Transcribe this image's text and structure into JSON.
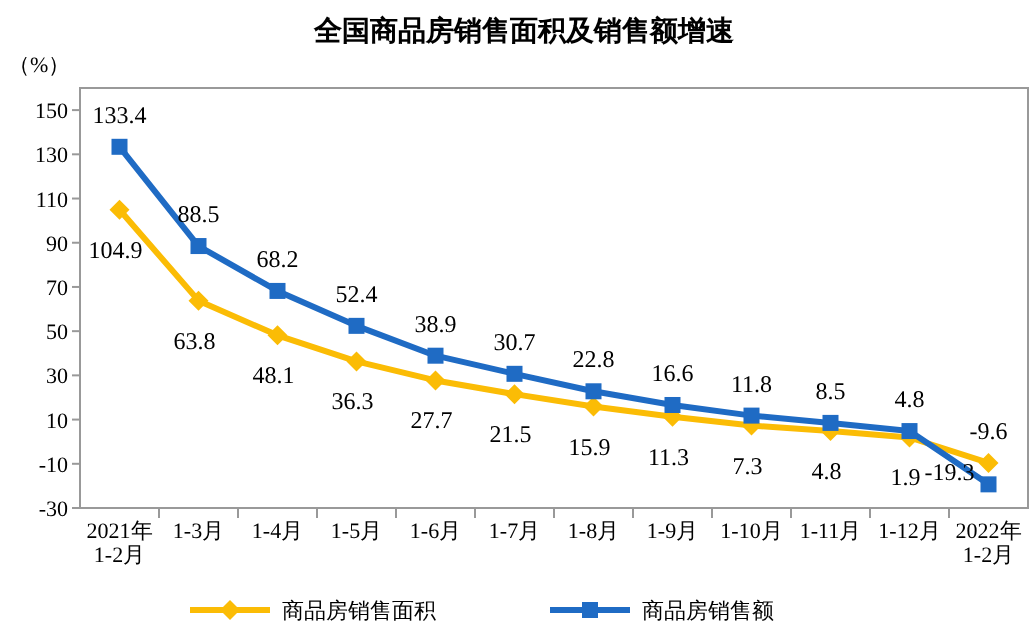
{
  "chart_data": {
    "type": "line",
    "title": "全国商品房销售面积及销售额增速",
    "ylabel": "（%）",
    "categories": [
      "2021年1-2月",
      "1-3月",
      "1-4月",
      "1-5月",
      "1-6月",
      "1-7月",
      "1-8月",
      "1-9月",
      "1-10月",
      "1-11月",
      "1-12月",
      "2022年1-2月"
    ],
    "series": [
      {
        "name": "商品房销售面积",
        "color": "#fbbc05",
        "marker": "diamond",
        "values": [
          104.9,
          63.8,
          48.1,
          36.3,
          27.7,
          21.5,
          15.9,
          11.3,
          7.3,
          4.8,
          1.9,
          -9.6
        ]
      },
      {
        "name": "商品房销售额",
        "color": "#1f6bc4",
        "marker": "square",
        "values": [
          133.4,
          88.5,
          68.2,
          52.4,
          38.9,
          30.7,
          22.8,
          16.6,
          11.8,
          8.5,
          4.8,
          -19.3
        ]
      }
    ],
    "ylim": [
      -30,
      160
    ],
    "yticks": [
      -30,
      -10,
      10,
      30,
      50,
      70,
      90,
      110,
      130,
      150
    ],
    "data_labels": true,
    "legend": "bottom",
    "grid": false
  }
}
